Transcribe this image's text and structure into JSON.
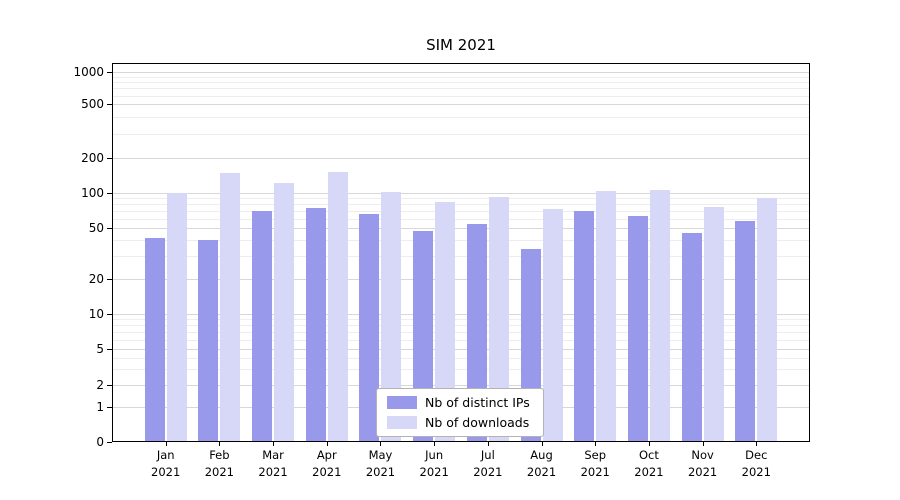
{
  "chart_data": {
    "type": "bar",
    "title": "SIM 2021",
    "categories": [
      "Jan",
      "Feb",
      "Mar",
      "Apr",
      "May",
      "Jun",
      "Jul",
      "Aug",
      "Sep",
      "Oct",
      "Nov",
      "Dec"
    ],
    "category_year": "2021",
    "series": [
      {
        "name": "Nb of distinct IPs",
        "color": "#9999ec",
        "values": [
          42,
          40,
          70,
          74,
          66,
          47,
          54,
          34,
          70,
          63,
          46,
          58
        ]
      },
      {
        "name": "Nb of downloads",
        "color": "#d7d7f8",
        "values": [
          100,
          150,
          122,
          152,
          103,
          84,
          92,
          73,
          104,
          107,
          76,
          90
        ]
      }
    ],
    "y_ticks": [
      0,
      1,
      2,
      5,
      10,
      20,
      50,
      100,
      200,
      500,
      1000
    ],
    "y_scale": "symlog",
    "ylim": [
      0,
      1200
    ],
    "xlabel": "",
    "ylabel": "",
    "grid": "horizontal",
    "legend_position": "lower-center"
  }
}
